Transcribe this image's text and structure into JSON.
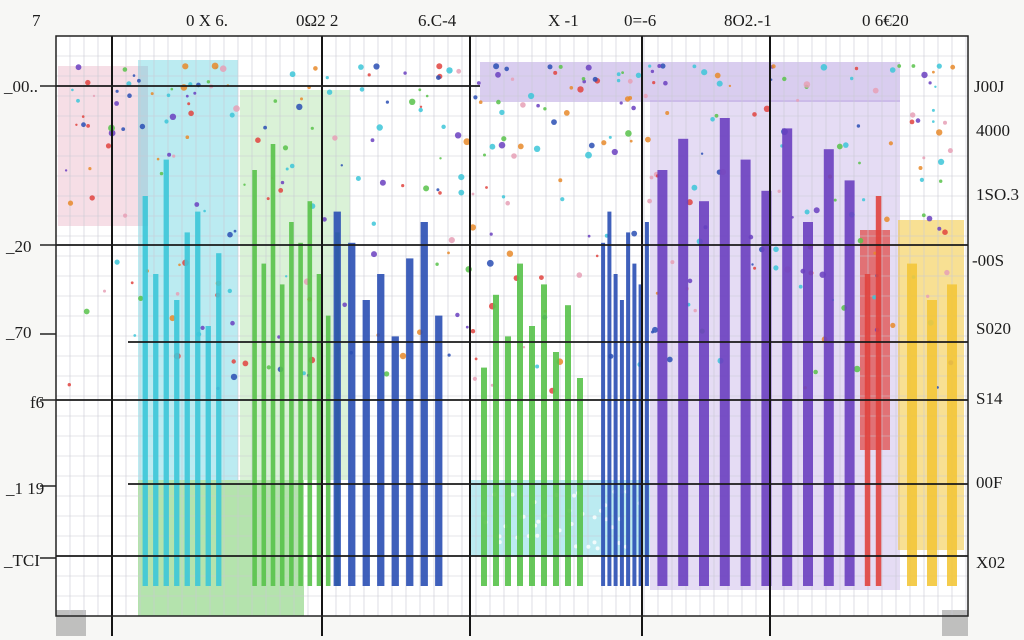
{
  "chart_data": {
    "type": "bar",
    "title": "",
    "xlabel": "",
    "ylabel": "",
    "grid": true,
    "top_tick_labels": [
      "7",
      "0 X 6.",
      "0Ω2 2",
      "6.C-4",
      "X -1",
      "0=-6",
      "8O2.-1",
      "0 6€20"
    ],
    "left_tick_labels": [
      "_00..",
      "_20",
      "_70",
      "f6",
      "_1 19",
      "_TCI"
    ],
    "right_tick_labels": [
      "J00J",
      "4000",
      "1SO.3",
      "-00S",
      "S020",
      "S14",
      "00F",
      "X02"
    ],
    "colors": {
      "teal": "#3cc6d8",
      "green": "#58c24a",
      "blue": "#2a4fb4",
      "purple": "#6a3fc0",
      "lavender": "#b49be0",
      "red": "#e0433e",
      "yellow": "#f3c63a",
      "pink": "#e6a0b6"
    },
    "series": [
      {
        "color_key": "teal",
        "values": [
          0.75,
          0.6,
          0.82,
          0.55,
          0.68,
          0.72,
          0.5,
          0.64
        ]
      },
      {
        "color_key": "green",
        "values": [
          0.8,
          0.62,
          0.85,
          0.58,
          0.7,
          0.66,
          0.74,
          0.6,
          0.52,
          0.68
        ]
      },
      {
        "color_key": "blue",
        "values": [
          0.72,
          0.66,
          0.55,
          0.6,
          0.48,
          0.63,
          0.7,
          0.52
        ]
      },
      {
        "color_key": "green",
        "values": [
          0.42,
          0.56,
          0.48,
          0.62,
          0.5,
          0.58,
          0.45,
          0.54,
          0.4
        ]
      },
      {
        "color_key": "blue",
        "values": [
          0.66,
          0.72,
          0.6,
          0.55,
          0.68,
          0.62,
          0.58,
          0.7
        ]
      },
      {
        "color_key": "purple",
        "values": [
          0.8,
          0.86,
          0.74,
          0.9,
          0.82,
          0.76,
          0.88,
          0.7,
          0.84,
          0.78
        ]
      },
      {
        "color_key": "red",
        "values": [
          0.6,
          0.75
        ]
      },
      {
        "color_key": "yellow",
        "values": [
          0.62,
          0.55,
          0.58
        ]
      }
    ]
  }
}
